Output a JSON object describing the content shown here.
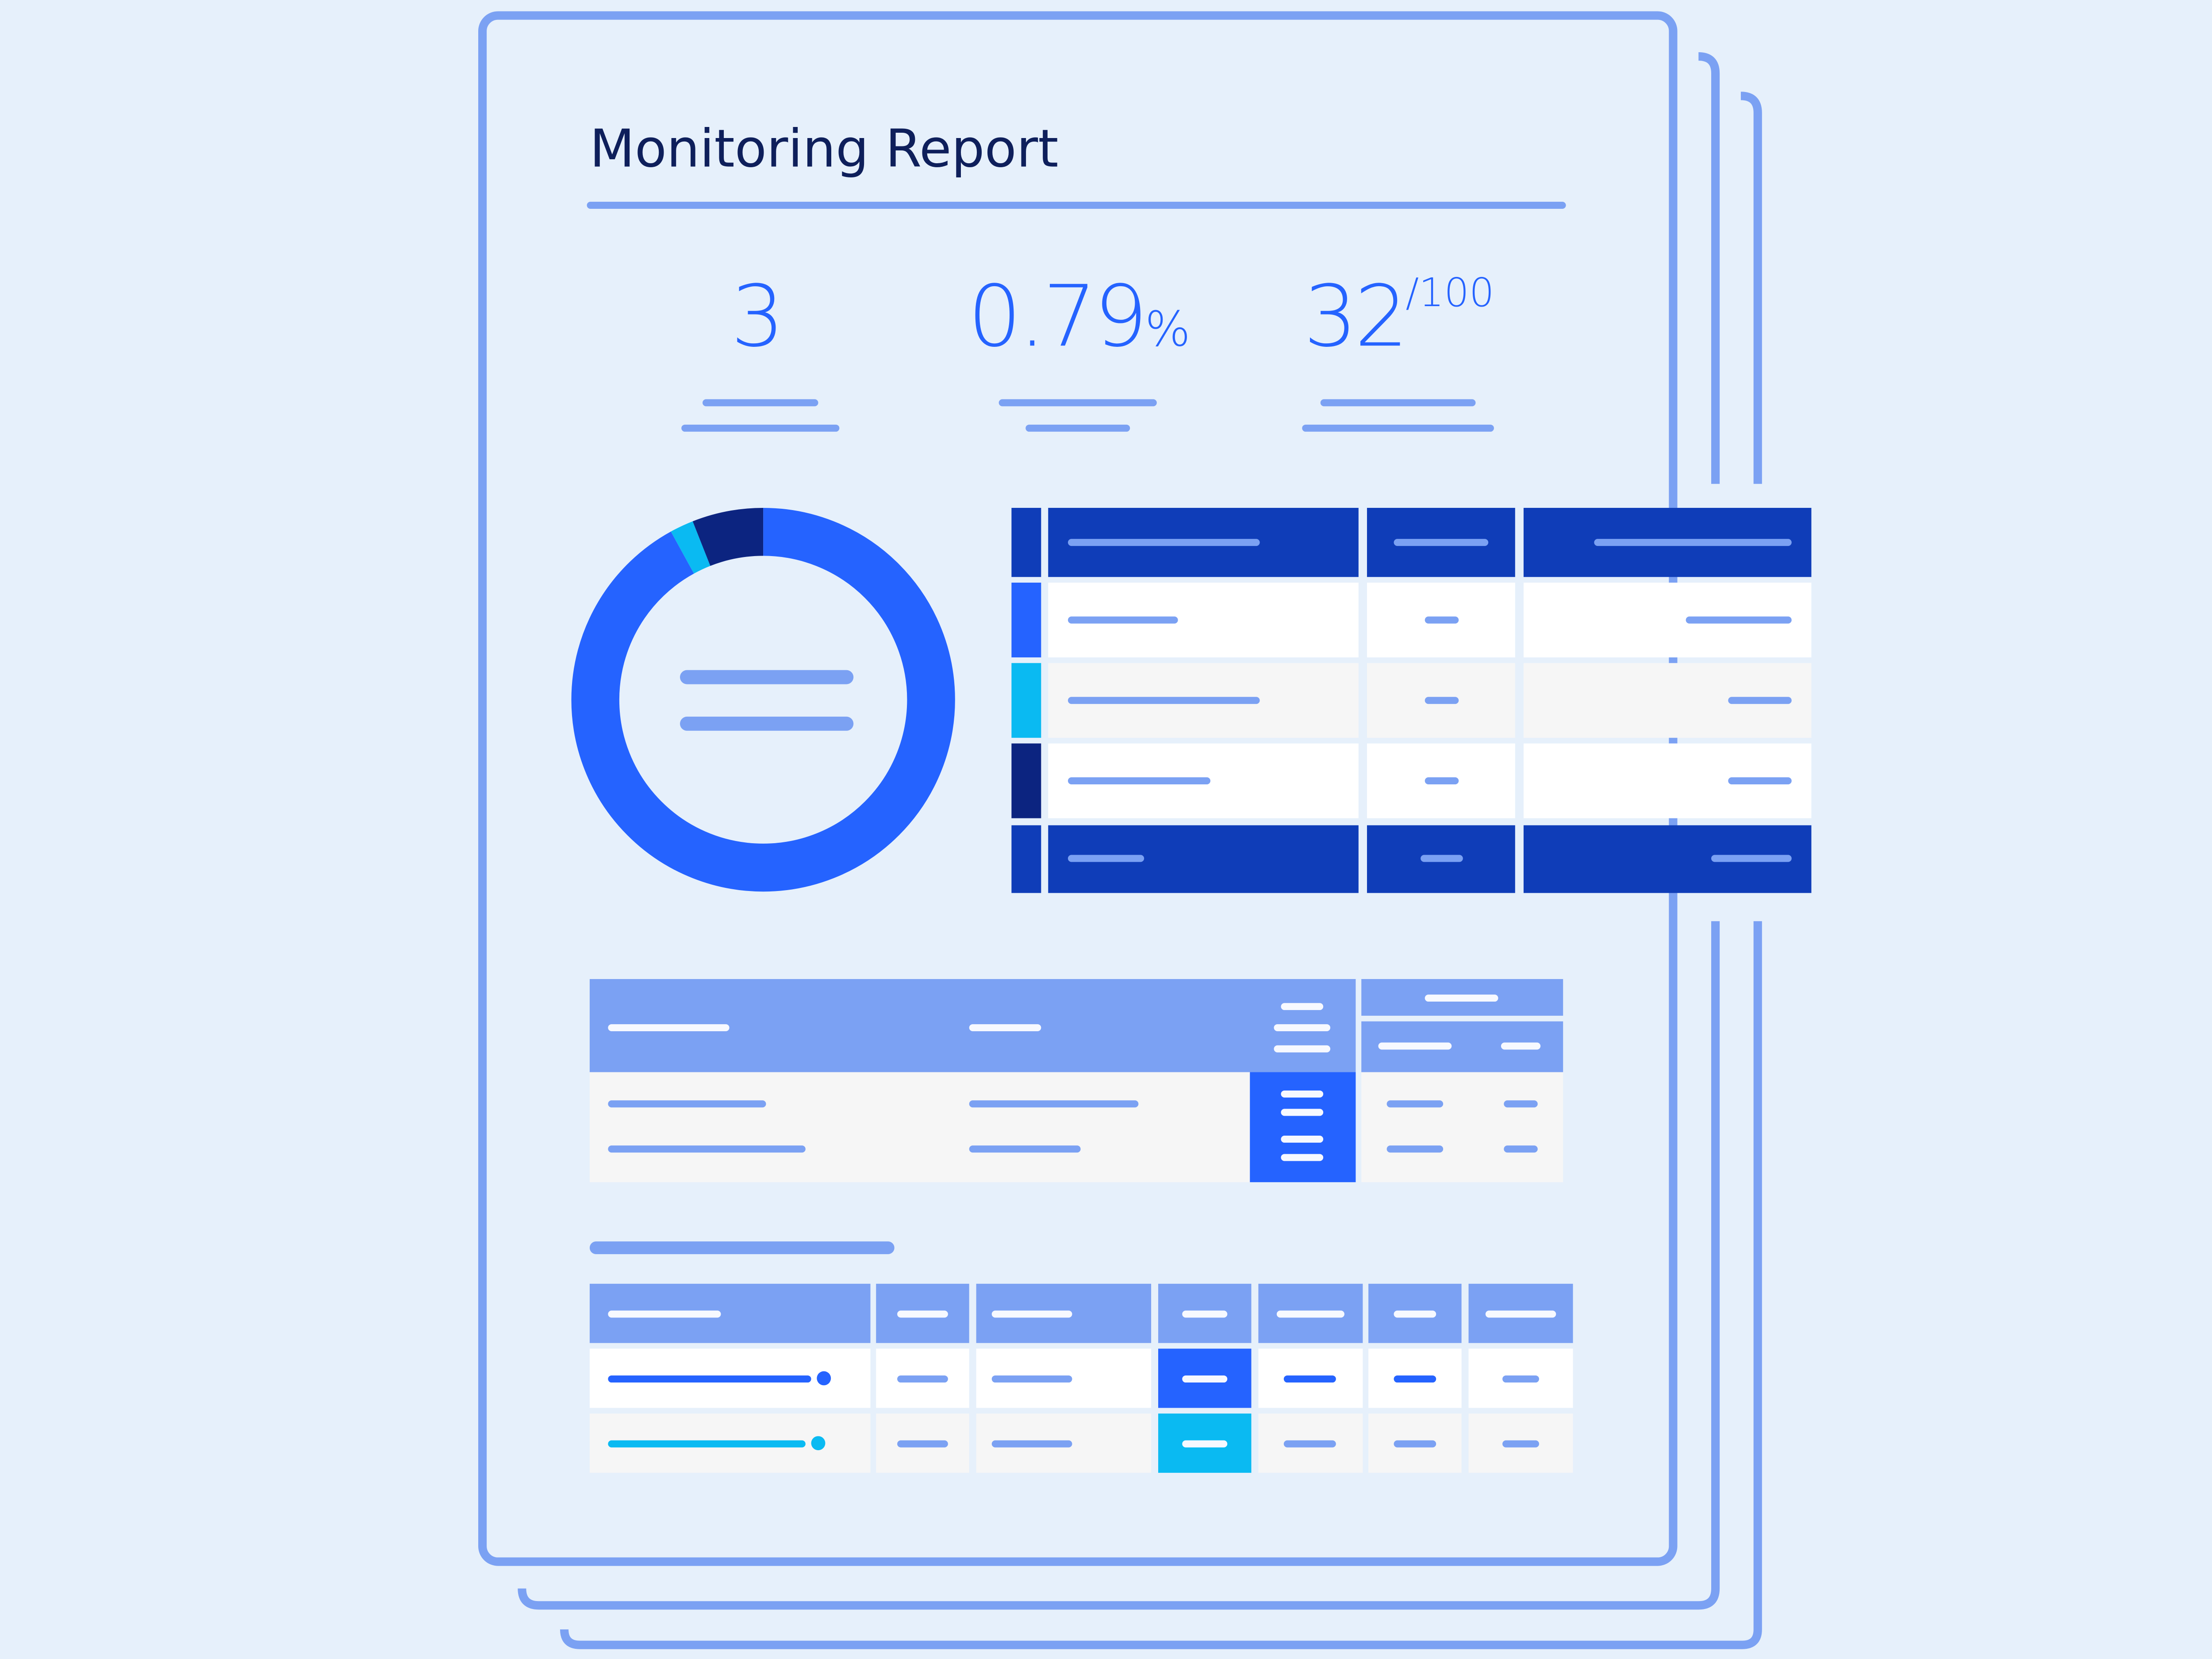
{
  "report": {
    "title": "Monitoring Report"
  },
  "kpis": [
    {
      "value": "3",
      "unit": "",
      "suffix": ""
    },
    {
      "value": "0.79",
      "unit": "%",
      "suffix": ""
    },
    {
      "value": "32",
      "unit": "",
      "suffix": "/100"
    }
  ],
  "colors": {
    "background": "#e6f0fb",
    "outline": "#7ba1f3",
    "primary": "#2563ff",
    "navy": "#0f3db8",
    "dark_navy": "#0c2480",
    "cyan": "#0abaf2",
    "title": "#0e1f5b"
  },
  "donut": {
    "segments": [
      {
        "fraction": 0.92,
        "color": "#2563ff"
      },
      {
        "fraction": 0.02,
        "color": "#0abaf2"
      },
      {
        "fraction": 0.06,
        "color": "#0c2480"
      }
    ]
  }
}
